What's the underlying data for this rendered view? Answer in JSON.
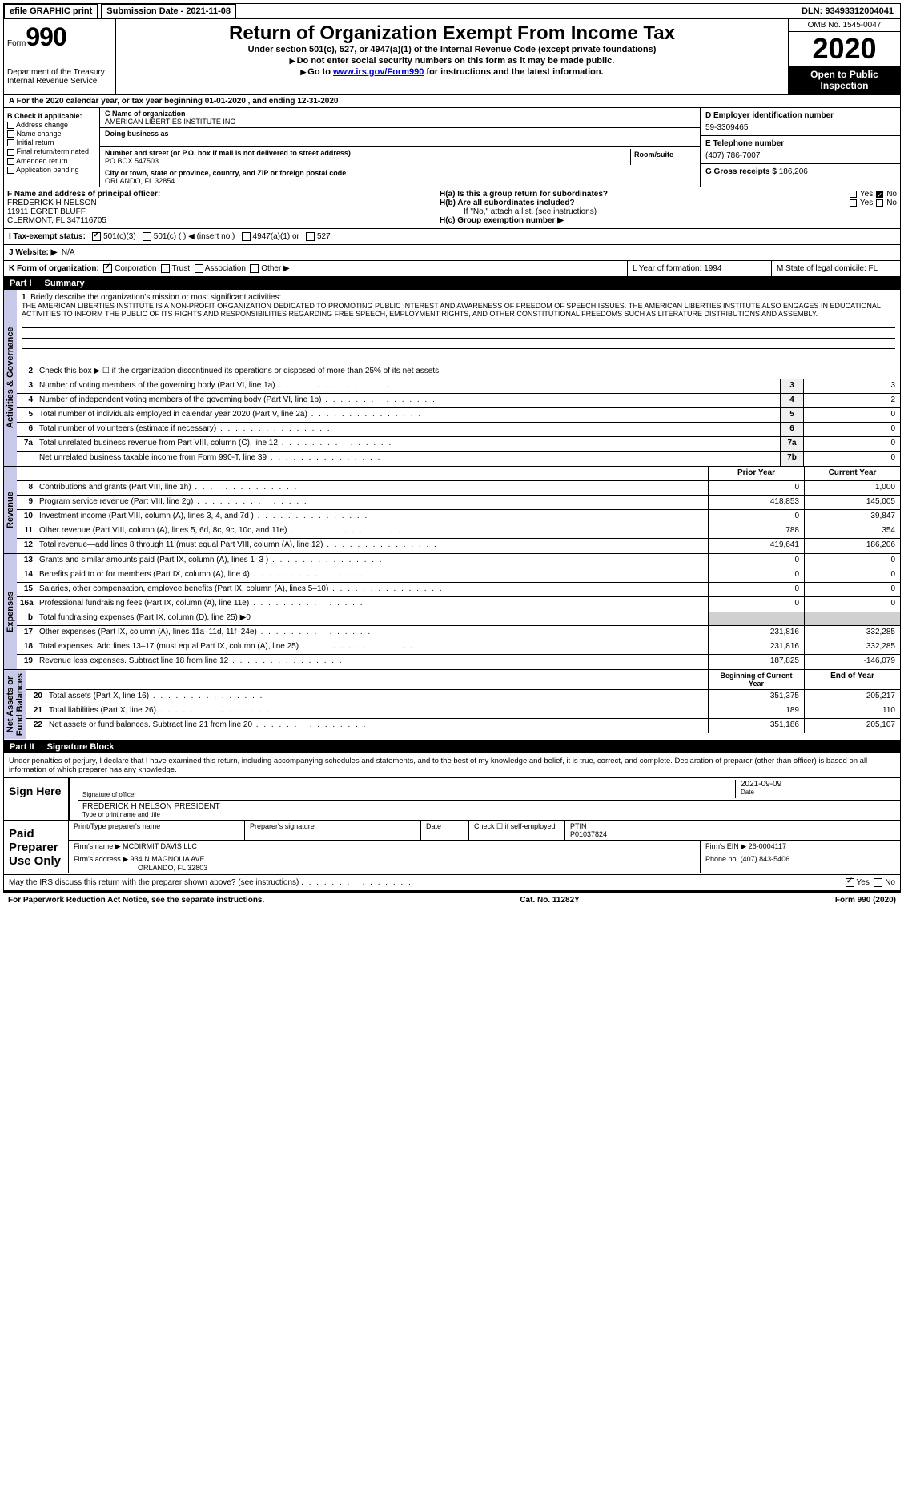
{
  "topbar": {
    "efile": "efile GRAPHIC print",
    "submission": "Submission Date - 2021-11-08",
    "dln": "DLN: 93493312004041"
  },
  "header": {
    "form_label": "Form",
    "form_num": "990",
    "dept": "Department of the Treasury\nInternal Revenue Service",
    "title": "Return of Organization Exempt From Income Tax",
    "subtitle": "Under section 501(c), 527, or 4947(a)(1) of the Internal Revenue Code (except private foundations)",
    "line1": "Do not enter social security numbers on this form as it may be made public.",
    "line2_pre": "Go to ",
    "line2_link": "www.irs.gov/Form990",
    "line2_post": " for instructions and the latest information.",
    "omb": "OMB No. 1545-0047",
    "year": "2020",
    "open": "Open to Public Inspection"
  },
  "row_a": "A For the 2020 calendar year, or tax year beginning 01-01-2020   , and ending 12-31-2020",
  "col_b": {
    "label": "B Check if applicable:",
    "opts": [
      "Address change",
      "Name change",
      "Initial return",
      "Final return/terminated",
      "Amended return",
      "Application pending"
    ]
  },
  "col_c": {
    "name_label": "C Name of organization",
    "name": "AMERICAN LIBERTIES INSTITUTE INC",
    "dba_label": "Doing business as",
    "addr_label": "Number and street (or P.O. box if mail is not delivered to street address)",
    "addr": "PO BOX 547503",
    "suite_label": "Room/suite",
    "city_label": "City or town, state or province, country, and ZIP or foreign postal code",
    "city": "ORLANDO, FL  32854"
  },
  "col_d": {
    "ein_label": "D Employer identification number",
    "ein": "59-3309465",
    "tel_label": "E Telephone number",
    "tel": "(407) 786-7007",
    "gross_label": "G Gross receipts $ ",
    "gross": "186,206"
  },
  "row_f": {
    "label": "F  Name and address of principal officer:",
    "name": "FREDERICK H NELSON",
    "addr1": "11911 EGRET BLUFF",
    "addr2": "CLERMONT, FL  347116705",
    "ha": "H(a)  Is this a group return for subordinates?",
    "hb": "H(b)  Are all subordinates included?",
    "hb_note": "If \"No,\" attach a list. (see instructions)",
    "hc": "H(c)  Group exemption number ▶",
    "yes": "Yes",
    "no": "No"
  },
  "row_i": {
    "label": "I    Tax-exempt status:",
    "o1": "501(c)(3)",
    "o2": "501(c) (  ) ◀ (insert no.)",
    "o3": "4947(a)(1) or",
    "o4": "527"
  },
  "row_j": {
    "label": "J   Website: ▶",
    "val": "N/A"
  },
  "row_k": {
    "label": "K Form of organization:",
    "o1": "Corporation",
    "o2": "Trust",
    "o3": "Association",
    "o4": "Other ▶",
    "l": "L Year of formation: 1994",
    "m": "M State of legal domicile: FL"
  },
  "parts": {
    "p1": "Part I",
    "p1t": "Summary",
    "p2": "Part II",
    "p2t": "Signature Block"
  },
  "sides": {
    "ag": "Activities & Governance",
    "rev": "Revenue",
    "exp": "Expenses",
    "na": "Net Assets or\nFund Balances"
  },
  "summary": {
    "l1_label": "Briefly describe the organization's mission or most significant activities:",
    "l1": "THE AMERICAN LIBERTIES INSTITUTE IS A NON-PROFIT ORGANIZATION DEDICATED TO PROMOTING PUBLIC INTEREST AND AWARENESS OF FREEDOM OF SPEECH ISSUES. THE AMERICAN LIBERTIES INSTITUTE ALSO ENGAGES IN EDUCATIONAL ACTIVITIES TO INFORM THE PUBLIC OF ITS RIGHTS AND RESPONSIBILITIES REGARDING FREE SPEECH, EMPLOYMENT RIGHTS, AND OTHER CONSTITUTIONAL FREEDOMS SUCH AS LITERATURE DISTRIBUTIONS AND ASSEMBLY.",
    "l2": "Check this box ▶ ☐  if the organization discontinued its operations or disposed of more than 25% of its net assets.",
    "rows_single": [
      {
        "n": "3",
        "t": "Number of voting members of the governing body (Part VI, line 1a)",
        "box": "3",
        "v": "3"
      },
      {
        "n": "4",
        "t": "Number of independent voting members of the governing body (Part VI, line 1b)",
        "box": "4",
        "v": "2"
      },
      {
        "n": "5",
        "t": "Total number of individuals employed in calendar year 2020 (Part V, line 2a)",
        "box": "5",
        "v": "0"
      },
      {
        "n": "6",
        "t": "Total number of volunteers (estimate if necessary)",
        "box": "6",
        "v": "0"
      },
      {
        "n": "7a",
        "t": "Total unrelated business revenue from Part VIII, column (C), line 12",
        "box": "7a",
        "v": "0"
      },
      {
        "n": "",
        "t": "Net unrelated business taxable income from Form 990-T, line 39",
        "box": "7b",
        "v": "0"
      }
    ],
    "hdr_prior": "Prior Year",
    "hdr_curr": "Current Year",
    "rev_rows": [
      {
        "n": "8",
        "t": "Contributions and grants (Part VIII, line 1h)",
        "p": "0",
        "c": "1,000"
      },
      {
        "n": "9",
        "t": "Program service revenue (Part VIII, line 2g)",
        "p": "418,853",
        "c": "145,005"
      },
      {
        "n": "10",
        "t": "Investment income (Part VIII, column (A), lines 3, 4, and 7d )",
        "p": "0",
        "c": "39,847"
      },
      {
        "n": "11",
        "t": "Other revenue (Part VIII, column (A), lines 5, 6d, 8c, 9c, 10c, and 11e)",
        "p": "788",
        "c": "354"
      },
      {
        "n": "12",
        "t": "Total revenue—add lines 8 through 11 (must equal Part VIII, column (A), line 12)",
        "p": "419,641",
        "c": "186,206"
      }
    ],
    "exp_rows": [
      {
        "n": "13",
        "t": "Grants and similar amounts paid (Part IX, column (A), lines 1–3 )",
        "p": "0",
        "c": "0"
      },
      {
        "n": "14",
        "t": "Benefits paid to or for members (Part IX, column (A), line 4)",
        "p": "0",
        "c": "0"
      },
      {
        "n": "15",
        "t": "Salaries, other compensation, employee benefits (Part IX, column (A), lines 5–10)",
        "p": "0",
        "c": "0"
      },
      {
        "n": "16a",
        "t": "Professional fundraising fees (Part IX, column (A), line 11e)",
        "p": "0",
        "c": "0"
      }
    ],
    "l16b": "Total fundraising expenses (Part IX, column (D), line 25) ▶0",
    "exp_rows2": [
      {
        "n": "17",
        "t": "Other expenses (Part IX, column (A), lines 11a–11d, 11f–24e)",
        "p": "231,816",
        "c": "332,285"
      },
      {
        "n": "18",
        "t": "Total expenses. Add lines 13–17 (must equal Part IX, column (A), line 25)",
        "p": "231,816",
        "c": "332,285"
      },
      {
        "n": "19",
        "t": "Revenue less expenses. Subtract line 18 from line 12",
        "p": "187,825",
        "c": "-146,079"
      }
    ],
    "hdr_beg": "Beginning of Current Year",
    "hdr_end": "End of Year",
    "na_rows": [
      {
        "n": "20",
        "t": "Total assets (Part X, line 16)",
        "p": "351,375",
        "c": "205,217"
      },
      {
        "n": "21",
        "t": "Total liabilities (Part X, line 26)",
        "p": "189",
        "c": "110"
      },
      {
        "n": "22",
        "t": "Net assets or fund balances. Subtract line 21 from line 20",
        "p": "351,186",
        "c": "205,107"
      }
    ]
  },
  "sig": {
    "intro": "Under penalties of perjury, I declare that I have examined this return, including accompanying schedules and statements, and to the best of my knowledge and belief, it is true, correct, and complete. Declaration of preparer (other than officer) is based on all information of which preparer has any knowledge.",
    "sign_here": "Sign Here",
    "sig_officer": "Signature of officer",
    "date_label": "Date",
    "date": "2021-09-09",
    "name_label": "Type or print name and title",
    "name": "FREDERICK H NELSON  PRESIDENT",
    "paid": "Paid Preparer Use Only",
    "prep_name_label": "Print/Type preparer's name",
    "prep_sig_label": "Preparer's signature",
    "check_self": "Check ☐ if self-employed",
    "ptin_label": "PTIN",
    "ptin": "P01037824",
    "firm_name_label": "Firm's name    ▶",
    "firm_name": "MCDIRMIT DAVIS LLC",
    "firm_ein_label": "Firm's EIN ▶",
    "firm_ein": "26-0004117",
    "firm_addr_label": "Firm's address ▶",
    "firm_addr1": "934 N MAGNOLIA AVE",
    "firm_addr2": "ORLANDO, FL  32803",
    "phone_label": "Phone no.",
    "phone": "(407) 843-5406",
    "discuss": "May the IRS discuss this return with the preparer shown above? (see instructions)",
    "yes": "Yes",
    "no": "No"
  },
  "footer": {
    "left": "For Paperwork Reduction Act Notice, see the separate instructions.",
    "mid": "Cat. No. 11282Y",
    "right": "Form 990 (2020)"
  }
}
